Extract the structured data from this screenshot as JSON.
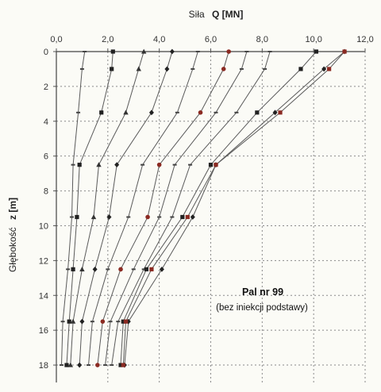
{
  "chart_data": {
    "type": "line",
    "x_title_prefix": "Siła",
    "x_title_bold": "Q [MN]",
    "y_title_prefix": "Głębokość",
    "y_title_bold": "z [m]",
    "xlim": [
      0,
      12
    ],
    "ylim": [
      0,
      19
    ],
    "y_inverted": true,
    "x_axis_position": "top",
    "grid": "dotted",
    "x_ticks": [
      "0,0",
      "2,0",
      "4,0",
      "6,0",
      "8,0",
      "10,0",
      "12,0"
    ],
    "y_ticks": [
      "0",
      "2",
      "4",
      "6",
      "8",
      "10",
      "12",
      "14",
      "16",
      "18"
    ],
    "annotation_title": "Pal nr 99",
    "annotation_subtitle": "(bez iniekcji podstawy)",
    "colors": {
      "line": "#5a5a5a",
      "marker_dark": "#222222",
      "marker_red": "#8b2a22",
      "grid": "#8a8a8a"
    },
    "depths": [
      0,
      1,
      3.5,
      6.5,
      9.5,
      12.5,
      15.5,
      18
    ],
    "series": [
      {
        "marker": "dash",
        "color": "#444444",
        "values": [
          1.1,
          1.0,
          0.85,
          0.65,
          0.6,
          0.45,
          0.25,
          0.2
        ]
      },
      {
        "marker": "square",
        "color": "#222222",
        "values": [
          2.2,
          2.15,
          1.75,
          0.9,
          0.8,
          0.65,
          0.5,
          0.4
        ]
      },
      {
        "marker": "triangle",
        "color": "#333333",
        "values": [
          3.4,
          3.2,
          2.7,
          1.65,
          1.45,
          1.0,
          0.65,
          0.55
        ]
      },
      {
        "marker": "diamond",
        "color": "#222222",
        "values": [
          4.5,
          4.3,
          3.7,
          2.35,
          2.05,
          1.5,
          1.0,
          0.9
        ]
      },
      {
        "marker": "dash",
        "color": "#444444",
        "values": [
          5.5,
          5.3,
          4.7,
          3.35,
          2.8,
          2.0,
          1.4,
          1.25
        ]
      },
      {
        "marker": "circle",
        "color": "#8b2a22",
        "values": [
          6.7,
          6.5,
          5.6,
          4.0,
          3.55,
          2.5,
          1.8,
          1.6
        ]
      },
      {
        "marker": "dash",
        "color": "#444444",
        "values": [
          7.4,
          7.2,
          6.2,
          4.6,
          4.0,
          3.0,
          2.1,
          1.9
        ]
      },
      {
        "marker": "dash",
        "color": "#444444",
        "values": [
          8.3,
          8.1,
          7.0,
          5.2,
          4.5,
          3.4,
          2.4,
          2.15
        ]
      },
      {
        "marker": "square",
        "color": "#222222",
        "values": [
          10.1,
          9.5,
          7.8,
          6.0,
          4.9,
          3.5,
          2.6,
          2.5
        ]
      },
      {
        "marker": "diamond",
        "color": "#222222",
        "values": [
          11.2,
          10.4,
          8.5,
          6.2,
          5.3,
          4.1,
          2.8,
          2.65
        ]
      },
      {
        "marker": "square",
        "color": "#8b2a22",
        "values": [
          11.2,
          10.6,
          8.7,
          6.2,
          5.1,
          3.7,
          2.7,
          2.6
        ]
      }
    ]
  }
}
